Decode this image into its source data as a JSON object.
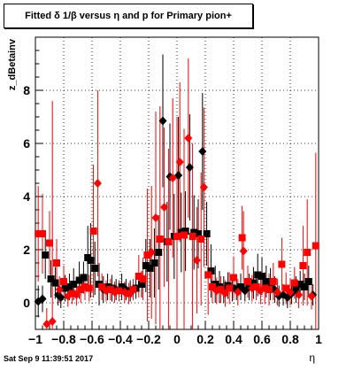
{
  "title": "Fitted δ 1/β versus η and p for Primary pion+",
  "timestamp": "Sat Sep  9 11:39:51 2017",
  "colors": {
    "series_a": "#000000",
    "series_b": "#ff0000",
    "grid": "#000000"
  },
  "chart_data": {
    "type": "scatter",
    "title": "Fitted δ 1/β versus η and p for Primary pion+",
    "xlabel": "η",
    "ylabel": "z_dBetainv",
    "xlim": [
      -1,
      1
    ],
    "ylim": [
      -1,
      10
    ],
    "x_ticks": [
      -1,
      -0.8,
      -0.6,
      -0.4,
      -0.2,
      0,
      0.2,
      0.4,
      0.6,
      0.8,
      1
    ],
    "x_tick_labels": [
      "−1",
      "−0.8",
      "−0.6",
      "−0.4",
      "−0.2",
      "0",
      "0.2",
      "0.4",
      "0.6",
      "0.8",
      "1"
    ],
    "y_ticks": [
      0,
      2,
      4,
      6,
      8
    ],
    "y_tick_labels": [
      "0",
      "2",
      "4",
      "6",
      "8"
    ],
    "grid": true,
    "series": [
      {
        "color": "#000000",
        "points": [
          {
            "x": -0.98,
            "y": 0.05,
            "m": "d",
            "e": 0.6
          },
          {
            "x": -0.95,
            "y": 0.15,
            "m": "d",
            "e": 0.5
          },
          {
            "x": -0.93,
            "y": 1.8,
            "m": "s",
            "e": 0.9
          },
          {
            "x": -0.89,
            "y": 0.9,
            "m": "s",
            "e": 0.7
          },
          {
            "x": -0.86,
            "y": 0.75,
            "m": "s",
            "e": 0.6
          },
          {
            "x": -0.84,
            "y": 0.3,
            "m": "d",
            "e": 0.4
          },
          {
            "x": -0.82,
            "y": 0.2,
            "m": "d",
            "e": 0.4
          },
          {
            "x": -0.79,
            "y": 0.55,
            "m": "s",
            "e": 0.5
          },
          {
            "x": -0.76,
            "y": 0.6,
            "m": "s",
            "e": 0.5
          },
          {
            "x": -0.73,
            "y": 0.7,
            "m": "s",
            "e": 0.6
          },
          {
            "x": -0.69,
            "y": 0.85,
            "m": "s",
            "e": 0.7
          },
          {
            "x": -0.66,
            "y": 0.95,
            "m": "s",
            "e": 0.6
          },
          {
            "x": -0.63,
            "y": 1.7,
            "m": "s",
            "e": 1.2
          },
          {
            "x": -0.61,
            "y": 1.6,
            "m": "s",
            "e": 1.4
          },
          {
            "x": -0.58,
            "y": 1.3,
            "m": "s",
            "e": 1.0
          },
          {
            "x": -0.55,
            "y": 0.7,
            "m": "s",
            "e": 0.8
          },
          {
            "x": -0.52,
            "y": 0.5,
            "m": "d",
            "e": 0.5
          },
          {
            "x": -0.49,
            "y": 0.6,
            "m": "s",
            "e": 0.5
          },
          {
            "x": -0.46,
            "y": 0.55,
            "m": "s",
            "e": 0.5
          },
          {
            "x": -0.43,
            "y": 0.5,
            "m": "d",
            "e": 0.4
          },
          {
            "x": -0.39,
            "y": 0.6,
            "m": "s",
            "e": 0.5
          },
          {
            "x": -0.36,
            "y": 0.5,
            "m": "d",
            "e": 0.4
          },
          {
            "x": -0.33,
            "y": 0.45,
            "m": "s",
            "e": 0.4
          },
          {
            "x": -0.29,
            "y": 0.55,
            "m": "s",
            "e": 0.4
          },
          {
            "x": -0.25,
            "y": 0.7,
            "m": "s",
            "e": 0.5
          },
          {
            "x": -0.22,
            "y": 1.4,
            "m": "s",
            "e": 1.0
          },
          {
            "x": -0.19,
            "y": 1.3,
            "m": "s",
            "e": 1.1
          },
          {
            "x": -0.16,
            "y": 1.5,
            "m": "s",
            "e": 1.3
          },
          {
            "x": -0.13,
            "y": 1.9,
            "m": "s",
            "e": 1.4
          },
          {
            "x": -0.1,
            "y": 6.85,
            "m": "d",
            "e": 2.5
          },
          {
            "x": -0.07,
            "y": 2.3,
            "m": "s",
            "e": 1.5
          },
          {
            "x": -0.05,
            "y": 4.75,
            "m": "d",
            "e": 2.0
          },
          {
            "x": -0.02,
            "y": 2.5,
            "m": "s",
            "e": 1.6
          },
          {
            "x": 0.01,
            "y": 4.8,
            "m": "d",
            "e": 2.2
          },
          {
            "x": 0.03,
            "y": 2.65,
            "m": "s",
            "e": 1.5
          },
          {
            "x": 0.06,
            "y": 2.7,
            "m": "s",
            "e": 1.5
          },
          {
            "x": 0.09,
            "y": 5.1,
            "m": "d",
            "e": 2.0
          },
          {
            "x": 0.12,
            "y": 2.65,
            "m": "s",
            "e": 1.4
          },
          {
            "x": 0.15,
            "y": 2.6,
            "m": "s",
            "e": 1.3
          },
          {
            "x": 0.18,
            "y": 5.7,
            "m": "d",
            "e": 2.2
          },
          {
            "x": 0.21,
            "y": 2.6,
            "m": "s",
            "e": 1.2
          },
          {
            "x": 0.24,
            "y": 1.2,
            "m": "s",
            "e": 1.0
          },
          {
            "x": 0.27,
            "y": 0.7,
            "m": "s",
            "e": 0.7
          },
          {
            "x": 0.3,
            "y": 0.6,
            "m": "s",
            "e": 0.6
          },
          {
            "x": 0.33,
            "y": 0.5,
            "m": "d",
            "e": 0.5
          },
          {
            "x": 0.36,
            "y": 0.65,
            "m": "s",
            "e": 0.5
          },
          {
            "x": 0.39,
            "y": 0.55,
            "m": "s",
            "e": 0.5
          },
          {
            "x": 0.42,
            "y": 0.5,
            "m": "d",
            "e": 0.4
          },
          {
            "x": 0.45,
            "y": 0.6,
            "m": "s",
            "e": 0.5
          },
          {
            "x": 0.48,
            "y": 0.45,
            "m": "d",
            "e": 0.4
          },
          {
            "x": 0.51,
            "y": 0.6,
            "m": "s",
            "e": 0.5
          },
          {
            "x": 0.54,
            "y": 0.75,
            "m": "s",
            "e": 0.6
          },
          {
            "x": 0.57,
            "y": 1.05,
            "m": "s",
            "e": 0.8
          },
          {
            "x": 0.6,
            "y": 1.0,
            "m": "s",
            "e": 0.7
          },
          {
            "x": 0.63,
            "y": 0.8,
            "m": "s",
            "e": 0.6
          },
          {
            "x": 0.66,
            "y": 0.7,
            "m": "s",
            "e": 0.6
          },
          {
            "x": 0.69,
            "y": 0.5,
            "m": "d",
            "e": 0.5
          },
          {
            "x": 0.72,
            "y": 0.25,
            "m": "d",
            "e": 0.4
          },
          {
            "x": 0.75,
            "y": 0.3,
            "m": "d",
            "e": 0.4
          },
          {
            "x": 0.78,
            "y": 0.2,
            "m": "d",
            "e": 0.4
          },
          {
            "x": 0.81,
            "y": 0.35,
            "m": "d",
            "e": 0.4
          },
          {
            "x": 0.84,
            "y": 0.5,
            "m": "s",
            "e": 0.5
          },
          {
            "x": 0.87,
            "y": 0.7,
            "m": "s",
            "e": 0.5
          },
          {
            "x": 0.9,
            "y": 0.6,
            "m": "s",
            "e": 0.5
          },
          {
            "x": 0.93,
            "y": 0.8,
            "m": "s",
            "e": 0.6
          },
          {
            "x": 0.96,
            "y": 0.3,
            "m": "d",
            "e": 0.4
          }
        ]
      },
      {
        "color": "#ff0000",
        "points": [
          {
            "x": -0.98,
            "y": 2.6,
            "m": "s",
            "e": 1.8
          },
          {
            "x": -0.95,
            "y": 2.6,
            "m": "s",
            "e": 1.5
          },
          {
            "x": -0.92,
            "y": -0.8,
            "m": "d",
            "e": 0.6
          },
          {
            "x": -0.9,
            "y": 2.25,
            "m": "s",
            "e": 1.2
          },
          {
            "x": -0.88,
            "y": -0.7,
            "m": "d",
            "e": 8.3
          },
          {
            "x": -0.85,
            "y": 1.5,
            "m": "s",
            "e": 0.9
          },
          {
            "x": -0.83,
            "y": 0.5,
            "m": "d",
            "e": 0.5
          },
          {
            "x": -0.8,
            "y": 0.8,
            "m": "s",
            "e": 0.6
          },
          {
            "x": -0.77,
            "y": 0.25,
            "m": "d",
            "e": 0.4
          },
          {
            "x": -0.74,
            "y": 0.35,
            "m": "s",
            "e": 0.4
          },
          {
            "x": -0.71,
            "y": 0.3,
            "m": "d",
            "e": 0.4
          },
          {
            "x": -0.68,
            "y": 0.5,
            "m": "s",
            "e": 0.5
          },
          {
            "x": -0.65,
            "y": 0.6,
            "m": "s",
            "e": 0.5
          },
          {
            "x": -0.62,
            "y": 0.55,
            "m": "s",
            "e": 0.5
          },
          {
            "x": -0.59,
            "y": 2.7,
            "m": "s",
            "e": 2.5
          },
          {
            "x": -0.56,
            "y": 4.5,
            "m": "d",
            "e": 3.5
          },
          {
            "x": -0.53,
            "y": 0.6,
            "m": "s",
            "e": 0.5
          },
          {
            "x": -0.5,
            "y": 0.45,
            "m": "d",
            "e": 0.4
          },
          {
            "x": -0.47,
            "y": 0.5,
            "m": "s",
            "e": 0.4
          },
          {
            "x": -0.44,
            "y": 0.4,
            "m": "d",
            "e": 0.4
          },
          {
            "x": -0.41,
            "y": 0.45,
            "m": "s",
            "e": 0.4
          },
          {
            "x": -0.37,
            "y": 0.4,
            "m": "d",
            "e": 0.4
          },
          {
            "x": -0.34,
            "y": 0.35,
            "m": "s",
            "e": 0.4
          },
          {
            "x": -0.31,
            "y": 0.5,
            "m": "s",
            "e": 0.4
          },
          {
            "x": -0.27,
            "y": 1.0,
            "m": "s",
            "e": 0.8
          },
          {
            "x": -0.24,
            "y": 0.9,
            "m": "s",
            "e": 0.8
          },
          {
            "x": -0.21,
            "y": 1.8,
            "m": "s",
            "e": 2.5
          },
          {
            "x": -0.18,
            "y": 1.9,
            "m": "d",
            "e": 2.5
          },
          {
            "x": -0.15,
            "y": 3.2,
            "m": "d",
            "e": 4.0
          },
          {
            "x": -0.12,
            "y": 2.4,
            "m": "s",
            "e": 5.0
          },
          {
            "x": -0.09,
            "y": 3.6,
            "m": "d",
            "e": 3.0
          },
          {
            "x": -0.06,
            "y": 2.3,
            "m": "s",
            "e": 3.5
          },
          {
            "x": -0.03,
            "y": 4.7,
            "m": "d",
            "e": 3.0
          },
          {
            "x": 0.0,
            "y": 2.5,
            "m": "s",
            "e": 4.5
          },
          {
            "x": 0.02,
            "y": 5.3,
            "m": "d",
            "e": 3.0
          },
          {
            "x": 0.05,
            "y": 2.55,
            "m": "s",
            "e": 4.0
          },
          {
            "x": 0.08,
            "y": 6.2,
            "m": "d",
            "e": 3.0
          },
          {
            "x": 0.11,
            "y": 2.5,
            "m": "s",
            "e": 3.5
          },
          {
            "x": 0.14,
            "y": 1.6,
            "m": "d",
            "e": 2.0
          },
          {
            "x": 0.17,
            "y": 2.4,
            "m": "s",
            "e": 2.5
          },
          {
            "x": 0.19,
            "y": 4.35,
            "m": "d",
            "e": 3.0
          },
          {
            "x": 0.22,
            "y": 1.05,
            "m": "s",
            "e": 1.5
          },
          {
            "x": 0.25,
            "y": 0.6,
            "m": "s",
            "e": 0.6
          },
          {
            "x": 0.28,
            "y": 0.45,
            "m": "d",
            "e": 0.5
          },
          {
            "x": 0.31,
            "y": 0.5,
            "m": "s",
            "e": 0.5
          },
          {
            "x": 0.34,
            "y": 0.35,
            "m": "d",
            "e": 0.5
          },
          {
            "x": 0.37,
            "y": 0.55,
            "m": "s",
            "e": 0.6
          },
          {
            "x": 0.4,
            "y": 0.95,
            "m": "s",
            "e": 0.8
          },
          {
            "x": 0.43,
            "y": 0.4,
            "m": "d",
            "e": 0.5
          },
          {
            "x": 0.46,
            "y": 2.45,
            "m": "s",
            "e": 1.2
          },
          {
            "x": 0.47,
            "y": 1.95,
            "m": "d",
            "e": 1.5
          },
          {
            "x": 0.5,
            "y": 0.8,
            "m": "s",
            "e": 0.6
          },
          {
            "x": 0.53,
            "y": 0.55,
            "m": "d",
            "e": 0.5
          },
          {
            "x": 0.56,
            "y": 0.6,
            "m": "s",
            "e": 0.5
          },
          {
            "x": 0.59,
            "y": 0.45,
            "m": "d",
            "e": 0.5
          },
          {
            "x": 0.62,
            "y": 0.55,
            "m": "s",
            "e": 0.6
          },
          {
            "x": 0.65,
            "y": 0.5,
            "m": "s",
            "e": 0.6
          },
          {
            "x": 0.68,
            "y": 0.8,
            "m": "s",
            "e": 0.7
          },
          {
            "x": 0.71,
            "y": 0.4,
            "m": "d",
            "e": 0.5
          },
          {
            "x": 0.74,
            "y": 1.45,
            "m": "s",
            "e": 1.0
          },
          {
            "x": 0.77,
            "y": 0.55,
            "m": "s",
            "e": 0.6
          },
          {
            "x": 0.8,
            "y": 0.4,
            "m": "d",
            "e": 0.5
          },
          {
            "x": 0.83,
            "y": 0.75,
            "m": "s",
            "e": 0.6
          },
          {
            "x": 0.86,
            "y": 0.3,
            "m": "d",
            "e": 0.5
          },
          {
            "x": 0.89,
            "y": 1.4,
            "m": "s",
            "e": 1.5
          },
          {
            "x": 0.92,
            "y": 1.9,
            "m": "s",
            "e": 2.0
          },
          {
            "x": 0.95,
            "y": 0.25,
            "m": "d",
            "e": 0.5
          },
          {
            "x": 0.98,
            "y": 2.15,
            "m": "s",
            "e": 3.5
          }
        ]
      }
    ]
  }
}
